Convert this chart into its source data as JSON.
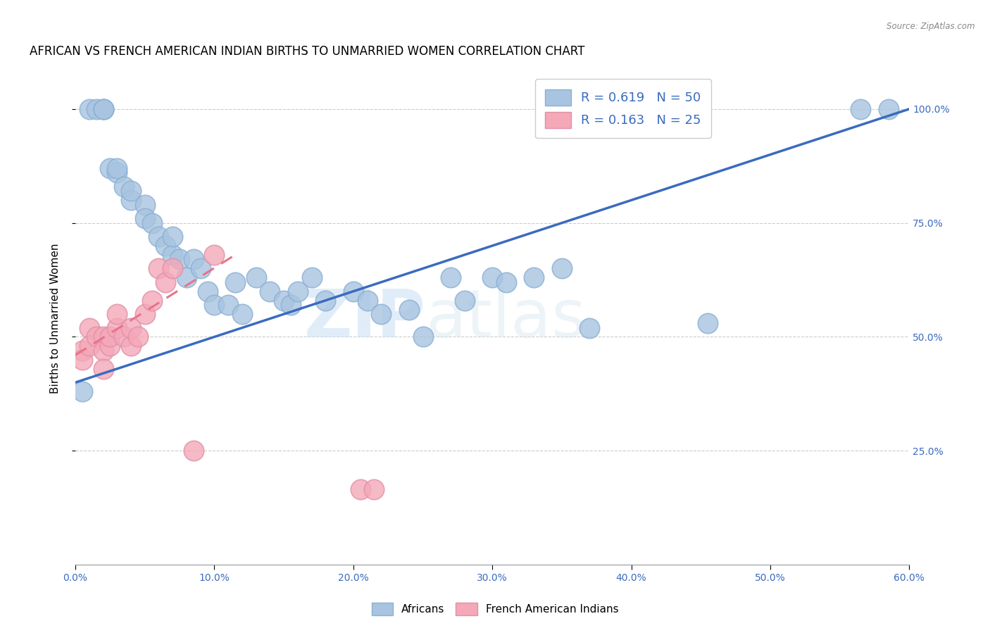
{
  "title": "AFRICAN VS FRENCH AMERICAN INDIAN BIRTHS TO UNMARRIED WOMEN CORRELATION CHART",
  "source": "Source: ZipAtlas.com",
  "ylabel": "Births to Unmarried Women",
  "xlim": [
    0.0,
    0.6
  ],
  "ylim": [
    0.0,
    1.08
  ],
  "xtick_labels": [
    "0.0%",
    "10.0%",
    "20.0%",
    "30.0%",
    "40.0%",
    "50.0%",
    "60.0%"
  ],
  "xtick_vals": [
    0.0,
    0.1,
    0.2,
    0.3,
    0.4,
    0.5,
    0.6
  ],
  "ytick_labels": [
    "25.0%",
    "50.0%",
    "75.0%",
    "100.0%"
  ],
  "ytick_vals": [
    0.25,
    0.5,
    0.75,
    1.0
  ],
  "african_R": 0.619,
  "african_N": 50,
  "french_R": 0.163,
  "french_N": 25,
  "african_color": "#a8c4e0",
  "french_color": "#f4a8b8",
  "african_line_color": "#3a6bbf",
  "french_line_color": "#e8748a",
  "watermark_zip": "ZIP",
  "watermark_atlas": "atlas",
  "african_x": [
    0.005,
    0.01,
    0.015,
    0.02,
    0.02,
    0.02,
    0.025,
    0.03,
    0.03,
    0.035,
    0.04,
    0.04,
    0.05,
    0.05,
    0.055,
    0.06,
    0.065,
    0.07,
    0.07,
    0.075,
    0.08,
    0.085,
    0.09,
    0.095,
    0.1,
    0.11,
    0.115,
    0.12,
    0.13,
    0.14,
    0.15,
    0.155,
    0.16,
    0.17,
    0.18,
    0.2,
    0.21,
    0.22,
    0.24,
    0.25,
    0.27,
    0.28,
    0.3,
    0.31,
    0.33,
    0.35,
    0.37,
    0.455,
    0.565,
    0.585
  ],
  "african_y": [
    0.38,
    1.0,
    1.0,
    1.0,
    1.0,
    1.0,
    0.87,
    0.86,
    0.87,
    0.83,
    0.8,
    0.82,
    0.79,
    0.76,
    0.75,
    0.72,
    0.7,
    0.68,
    0.72,
    0.67,
    0.63,
    0.67,
    0.65,
    0.6,
    0.57,
    0.57,
    0.62,
    0.55,
    0.63,
    0.6,
    0.58,
    0.57,
    0.6,
    0.63,
    0.58,
    0.6,
    0.58,
    0.55,
    0.56,
    0.5,
    0.63,
    0.58,
    0.63,
    0.62,
    0.63,
    0.65,
    0.52,
    0.53,
    1.0,
    1.0
  ],
  "french_x": [
    0.005,
    0.005,
    0.01,
    0.01,
    0.015,
    0.02,
    0.02,
    0.02,
    0.025,
    0.025,
    0.03,
    0.03,
    0.035,
    0.04,
    0.04,
    0.045,
    0.05,
    0.055,
    0.06,
    0.065,
    0.07,
    0.085,
    0.1,
    0.205,
    0.215
  ],
  "french_y": [
    0.47,
    0.45,
    0.52,
    0.48,
    0.5,
    0.5,
    0.47,
    0.43,
    0.48,
    0.5,
    0.52,
    0.55,
    0.5,
    0.48,
    0.52,
    0.5,
    0.55,
    0.58,
    0.65,
    0.62,
    0.65,
    0.25,
    0.68,
    0.165,
    0.165
  ],
  "african_line_x0": 0.0,
  "african_line_y0": 0.4,
  "african_line_x1": 0.6,
  "african_line_y1": 1.0,
  "french_line_x0": 0.0,
  "french_line_y0": 0.46,
  "french_line_x1": 0.115,
  "french_line_y1": 0.68,
  "title_fontsize": 12,
  "axis_label_fontsize": 11,
  "tick_fontsize": 10,
  "legend_fontsize": 13
}
